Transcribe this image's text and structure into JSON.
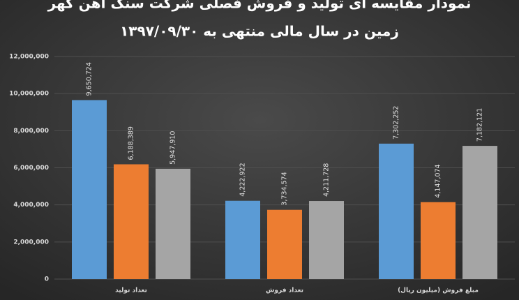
{
  "chart_data": {
    "type": "bar",
    "title": [
      "نمودار مقایسه ای تولید و فروش فصلی شرکت سنگ آهن گهر",
      "زمین در سال مالی منتهی به ۱۳۹۷/۰۹/۳۰"
    ],
    "categories": [
      "تعداد تولید",
      "تعداد فروش",
      "مبلغ فروش (میلیون ریال)"
    ],
    "series": [
      {
        "color": "#5b9bd5",
        "values": [
          9650724,
          4222922,
          7302252
        ],
        "value_labels": [
          "9,650,724",
          "4,222,922",
          "7,302,252"
        ]
      },
      {
        "color": "#ed7d31",
        "values": [
          6188389,
          3734574,
          4147074
        ],
        "value_labels": [
          "6,188,389",
          "3,734,574",
          "4,147,074"
        ]
      },
      {
        "color": "#a5a5a5",
        "values": [
          5947910,
          4211728,
          7182121
        ],
        "value_labels": [
          "5,947,910",
          "4,211,728",
          "7,182,121"
        ]
      }
    ],
    "ylim": [
      0,
      12000000
    ],
    "yticks": [
      {
        "value": 0,
        "label": "0"
      },
      {
        "value": 2000000,
        "label": "2,000,000"
      },
      {
        "value": 4000000,
        "label": "4,000,000"
      },
      {
        "value": 6000000,
        "label": "6,000,000"
      },
      {
        "value": 8000000,
        "label": "8,000,000"
      },
      {
        "value": 10000000,
        "label": "10,000,000"
      },
      {
        "value": 12000000,
        "label": "12,000,000"
      }
    ],
    "grid": true
  }
}
